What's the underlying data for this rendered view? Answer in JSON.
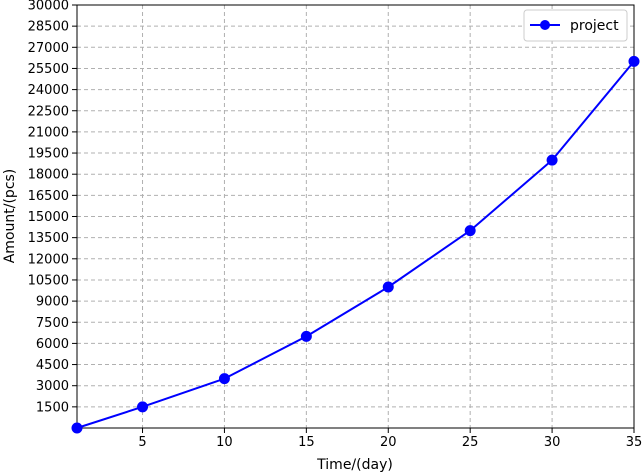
{
  "chart_data": {
    "type": "line",
    "xlabel": "Time/(day)",
    "ylabel": "Amount/(pcs)",
    "xlim": [
      1,
      35
    ],
    "ylim": [
      0,
      30000
    ],
    "x_ticks": [
      5,
      10,
      15,
      20,
      25,
      30,
      35
    ],
    "y_ticks": [
      1500,
      3000,
      4500,
      6000,
      7500,
      9000,
      10500,
      12000,
      13500,
      15000,
      16500,
      18000,
      19500,
      21000,
      22500,
      24000,
      25500,
      27000,
      28500,
      30000
    ],
    "grid": true,
    "grid_style": "dashed",
    "legend_position": "top-right",
    "series": [
      {
        "name": "project",
        "color": "#0000ff",
        "marker": "circle",
        "x": [
          1,
          5,
          10,
          15,
          20,
          25,
          30,
          35
        ],
        "y": [
          0,
          1500,
          3500,
          6500,
          10000,
          14000,
          19000,
          26000
        ]
      }
    ]
  }
}
